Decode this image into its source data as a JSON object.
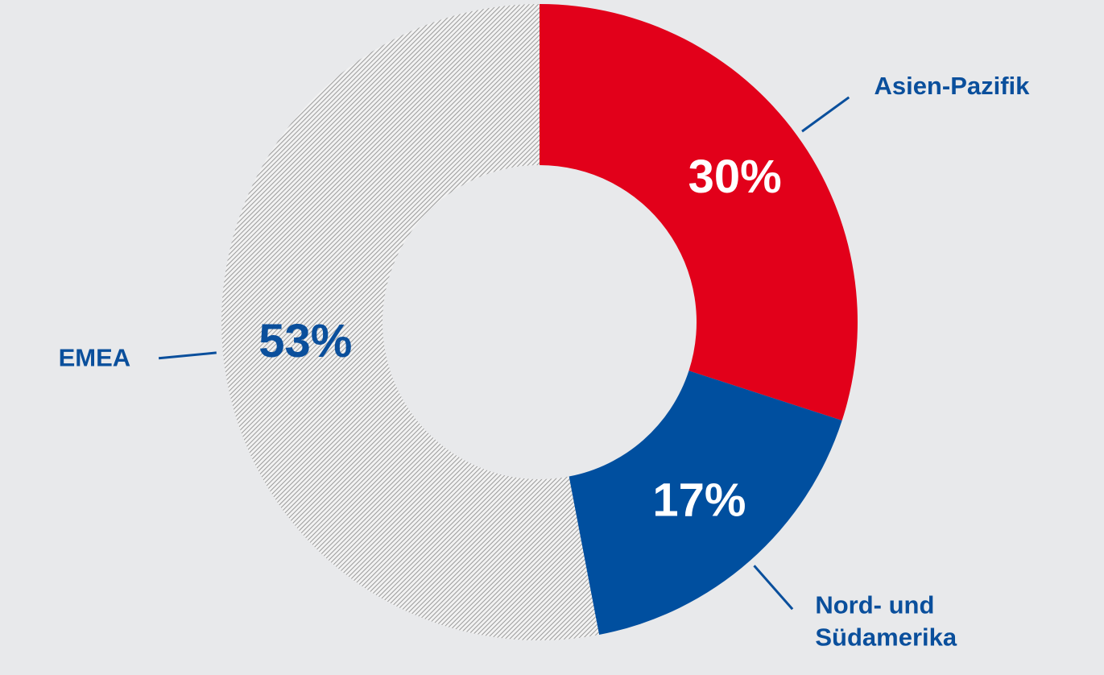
{
  "chart_data": {
    "type": "donut",
    "categories": [
      "Asien-Pazifik",
      "Nord- und Südamerika",
      "EMEA"
    ],
    "values": [
      30,
      17,
      53
    ],
    "value_labels": [
      "30%",
      "17%",
      "53%"
    ],
    "colors": [
      "#e2001a",
      "#004f9f",
      "#c9c9c9"
    ],
    "hatched": [
      false,
      false,
      true
    ]
  }
}
